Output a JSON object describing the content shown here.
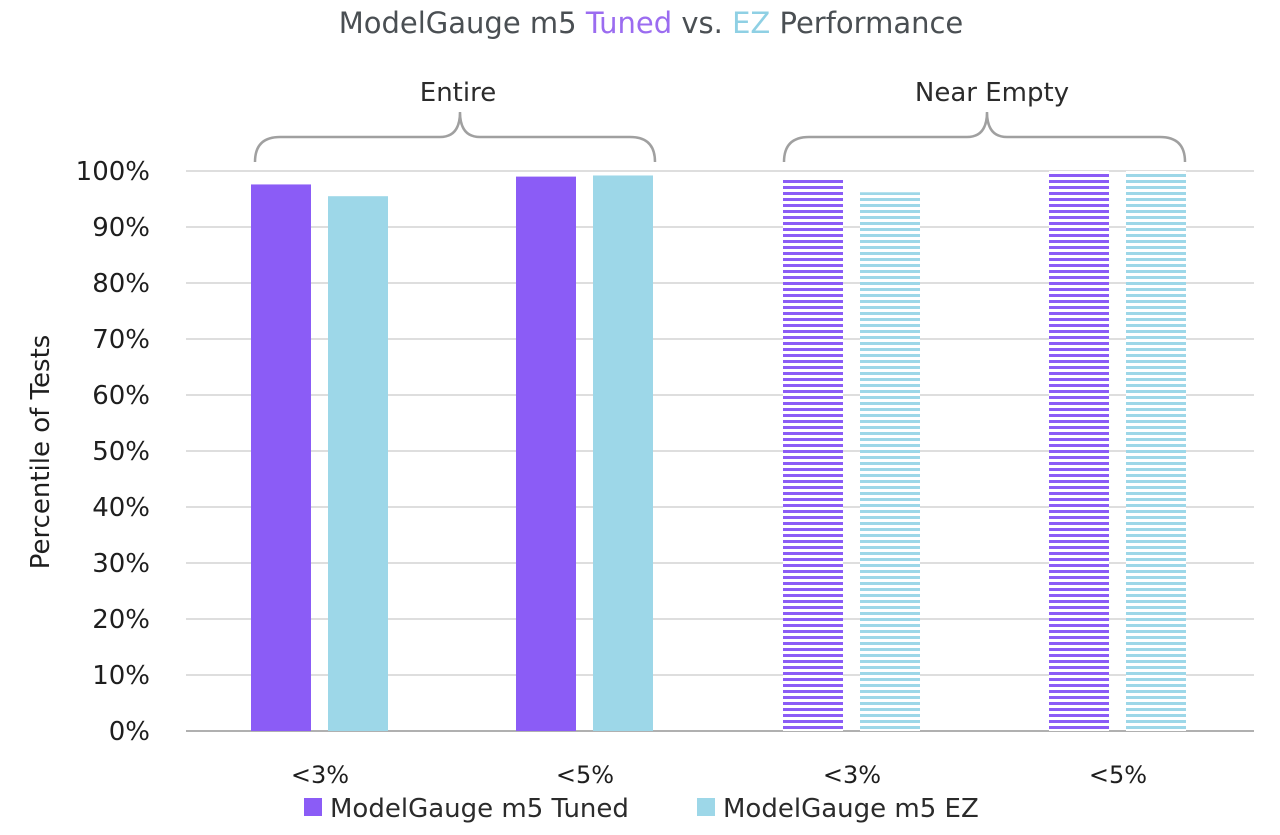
{
  "chart_data": {
    "type": "bar",
    "title": {
      "part1": "ModelGauge m5 ",
      "part2": "Tuned",
      "part3": " vs. ",
      "part4": "EZ",
      "part5": " Performance"
    },
    "ylabel": "Percentile of Tests",
    "ylim": [
      0,
      100
    ],
    "yticks": [
      "0%",
      "10%",
      "20%",
      "30%",
      "40%",
      "50%",
      "60%",
      "70%",
      "80%",
      "90%",
      "100%"
    ],
    "groups": [
      {
        "label": "Entire",
        "categories": [
          "<3%",
          "<5%"
        ],
        "pattern": "solid"
      },
      {
        "label": "Near Empty",
        "categories": [
          "<3%",
          "<5%"
        ],
        "pattern": "striped"
      }
    ],
    "categories": [
      "<3%",
      "<5%",
      "<3%",
      "<5%"
    ],
    "series": [
      {
        "name": "ModelGauge m5 Tuned",
        "color": "#8b5cf6",
        "values": [
          97.6,
          99.0,
          98.5,
          100.0
        ]
      },
      {
        "name": "ModelGauge m5 EZ",
        "color": "#9dd7e8",
        "values": [
          95.5,
          99.2,
          96.2,
          100.0
        ]
      }
    ],
    "grid": true,
    "legend": "bottom"
  },
  "colors": {
    "tuned": "#8b5cf6",
    "ez": "#9dd7e8",
    "grid": "#d4d4d4",
    "bracket": "#a0a0a0",
    "title": "#4a4f53"
  }
}
